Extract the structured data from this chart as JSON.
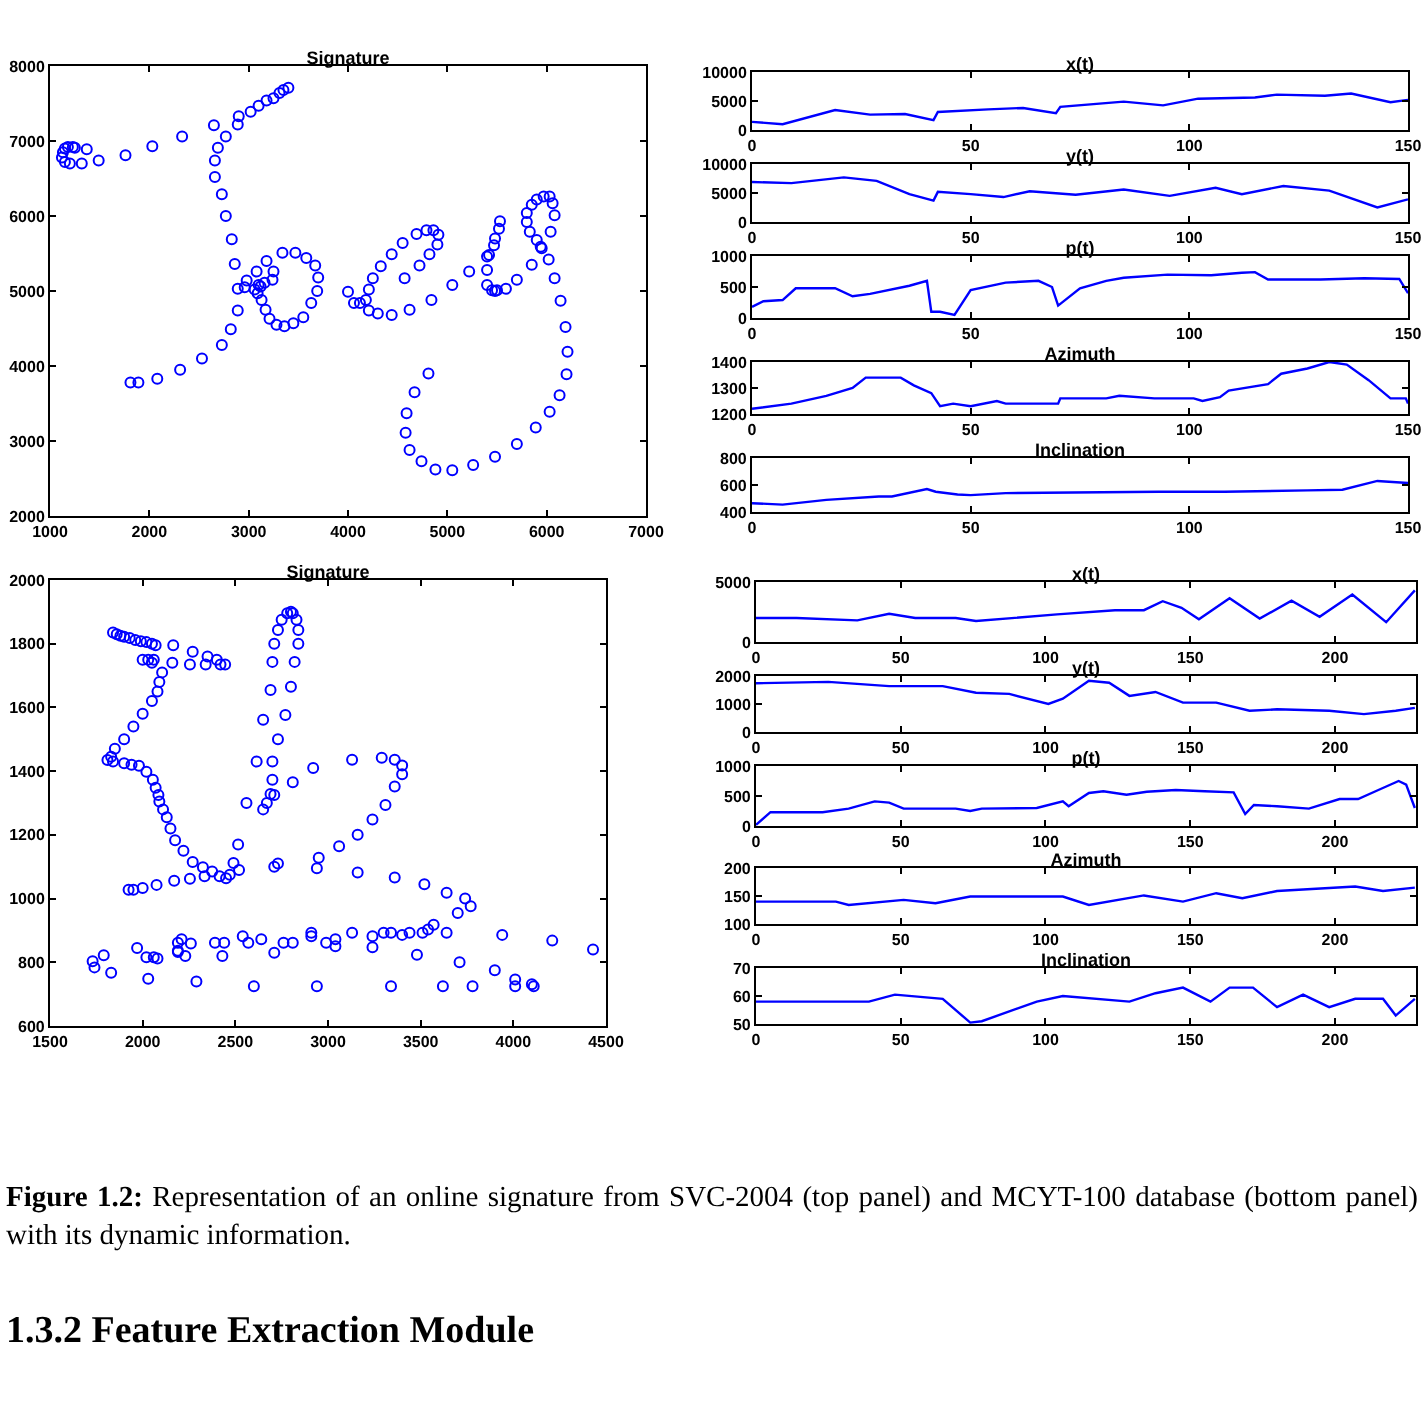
{
  "chart_data": [
    {
      "type": "scatter",
      "title": "Signature",
      "marker": "circle",
      "color": "#0000ff",
      "xlim": [
        1000,
        7000
      ],
      "xticks": [
        1000,
        2000,
        3000,
        4000,
        5000,
        6000,
        7000
      ],
      "ylim": [
        2000,
        8000
      ],
      "yticks": [
        2000,
        3000,
        4000,
        5000,
        6000,
        7000,
        8000
      ],
      "x": [
        1150,
        1130,
        1120,
        1150,
        1200,
        1180,
        1230,
        1250,
        1370,
        1320,
        1490,
        1760,
        2030,
        2330,
        2650,
        2900,
        2890,
        3020,
        3100,
        3180,
        3250,
        3310,
        3350,
        3400,
        2770,
        2690,
        2660,
        2660,
        2730,
        2770,
        2830,
        2860,
        2890,
        2890,
        2820,
        2730,
        2530,
        2310,
        2080,
        1890,
        1810,
        2980,
        2960,
        3080,
        3180,
        3250,
        3240,
        3160,
        3120,
        3090,
        3130,
        3170,
        3210,
        3280,
        3360,
        3450,
        3550,
        3630,
        3690,
        3700,
        3670,
        3580,
        3470,
        3340,
        3060,
        3100,
        4000,
        4060,
        4120,
        4180,
        4210,
        4250,
        4330,
        4440,
        4550,
        4690,
        4790,
        4860,
        4910,
        4900,
        4820,
        4720,
        4570,
        4300,
        4210,
        4440,
        4620,
        4840,
        5050,
        5220,
        5400,
        5400,
        5450,
        5500,
        5590,
        5700,
        5850,
        5940,
        5950,
        5900,
        5830,
        5800,
        5800,
        5850,
        5900,
        5970,
        6030,
        6060,
        6080,
        6040,
        6020,
        6080,
        6140,
        6190,
        6210,
        6200,
        6130,
        6030,
        5890,
        5700,
        5480,
        5260,
        5050,
        4880,
        4740,
        4620,
        4580,
        4590,
        4670,
        4810,
        5400,
        5420,
        5470,
        5480,
        5520,
        5530,
        5480
      ],
      "values": [
        6900,
        6850,
        6780,
        6720,
        6700,
        6920,
        6920,
        6910,
        6890,
        6700,
        6740,
        6810,
        6930,
        7060,
        7210,
        7330,
        7220,
        7390,
        7470,
        7540,
        7570,
        7640,
        7680,
        7710,
        7060,
        6910,
        6740,
        6520,
        6290,
        6000,
        5690,
        5360,
        5030,
        4740,
        4490,
        4280,
        4100,
        3950,
        3830,
        3780,
        3780,
        5140,
        5050,
        5260,
        5400,
        5260,
        5150,
        5110,
        5060,
        4970,
        4880,
        4750,
        4630,
        4550,
        4530,
        4570,
        4650,
        4840,
        5000,
        5180,
        5340,
        5440,
        5510,
        5510,
        5020,
        5080,
        4990,
        4840,
        4840,
        4880,
        5020,
        5170,
        5330,
        5490,
        5640,
        5760,
        5810,
        5810,
        5750,
        5620,
        5490,
        5340,
        5170,
        4700,
        4740,
        4680,
        4750,
        4880,
        5080,
        5260,
        5280,
        5080,
        5010,
        5010,
        5030,
        5150,
        5350,
        5590,
        5570,
        5680,
        5790,
        5920,
        6040,
        6150,
        6220,
        6260,
        6260,
        6170,
        6010,
        5790,
        5420,
        5170,
        4870,
        4520,
        4190,
        3890,
        3610,
        3390,
        3180,
        2960,
        2790,
        2680,
        2610,
        2620,
        2730,
        2880,
        3110,
        3370,
        3650,
        3900,
        5460,
        5480,
        5610,
        5700,
        5830,
        5930,
        5000
      ]
    },
    {
      "type": "line",
      "title": "x(t)",
      "color": "#0000ff",
      "xlim": [
        0,
        150
      ],
      "xticks": [
        0,
        50,
        100,
        150
      ],
      "ylim": [
        0,
        10000
      ],
      "yticks": [
        0,
        5000,
        10000
      ],
      "x": [
        0,
        7,
        19,
        27,
        35,
        41.5,
        42.5,
        54,
        62,
        69.5,
        70.5,
        85,
        94,
        102,
        115,
        120,
        131,
        137,
        146,
        150
      ],
      "values": [
        1400,
        1000,
        3450,
        2650,
        2750,
        1700,
        3100,
        3550,
        3800,
        2900,
        4000,
        4900,
        4250,
        5400,
        5600,
        6100,
        5900,
        6300,
        4800,
        5200
      ]
    },
    {
      "type": "line",
      "title": "y(t)",
      "color": "#0000ff",
      "xlim": [
        0,
        150
      ],
      "xticks": [
        0,
        50,
        100,
        150
      ],
      "ylim": [
        0,
        10000
      ],
      "yticks": [
        0,
        5000,
        10000
      ],
      "x": [
        0,
        9,
        21,
        28.5,
        36,
        41.5,
        42.5,
        50,
        57.5,
        63.5,
        74,
        85,
        95.5,
        106,
        112,
        121.5,
        132,
        143,
        150
      ],
      "values": [
        6900,
        6700,
        7700,
        7100,
        4800,
        3700,
        5200,
        4800,
        4300,
        5300,
        4700,
        5600,
        4500,
        5900,
        4800,
        6200,
        5400,
        2500,
        3900
      ]
    },
    {
      "type": "line",
      "title": "p(t)",
      "color": "#0000ff",
      "xlim": [
        0,
        150
      ],
      "xticks": [
        0,
        50,
        100,
        150
      ],
      "ylim": [
        0,
        1000
      ],
      "yticks": [
        0,
        500,
        1000
      ],
      "x": [
        0,
        2.6,
        7,
        10,
        19,
        23,
        27,
        36,
        40,
        41,
        43,
        46.3,
        50,
        58,
        65.5,
        68.6,
        70,
        75,
        81,
        85,
        95,
        105,
        112,
        115,
        118,
        130,
        140,
        148,
        150
      ],
      "values": [
        180,
        270,
        290,
        480,
        480,
        350,
        390,
        520,
        600,
        100,
        100,
        50,
        450,
        570,
        600,
        500,
        200,
        480,
        600,
        650,
        700,
        690,
        730,
        740,
        620,
        620,
        640,
        630,
        400
      ]
    },
    {
      "type": "line",
      "title": "Azimuth",
      "color": "#0000ff",
      "xlim": [
        0,
        150
      ],
      "xticks": [
        0,
        50,
        100,
        150
      ],
      "ylim": [
        1200,
        1400
      ],
      "yticks": [
        1200,
        1300,
        1400
      ],
      "x": [
        0,
        9,
        17,
        23,
        26,
        34,
        37,
        41,
        43,
        46,
        50,
        56,
        58,
        70,
        70.5,
        81,
        84,
        92,
        101,
        103,
        107,
        109,
        118,
        121,
        127,
        132,
        136,
        141,
        146,
        149.5,
        150
      ],
      "values": [
        1220,
        1240,
        1270,
        1300,
        1340,
        1340,
        1310,
        1280,
        1230,
        1240,
        1230,
        1250,
        1240,
        1240,
        1260,
        1260,
        1270,
        1260,
        1260,
        1250,
        1265,
        1290,
        1315,
        1355,
        1375,
        1400,
        1390,
        1330,
        1260,
        1260,
        1240
      ]
    },
    {
      "type": "line",
      "title": "Inclination",
      "color": "#0000ff",
      "xlim": [
        0,
        150
      ],
      "xticks": [
        0,
        50,
        100,
        150
      ],
      "ylim": [
        400,
        800
      ],
      "yticks": [
        400,
        600,
        800
      ],
      "x": [
        0,
        7,
        17,
        29,
        32,
        40,
        42,
        47,
        50,
        58,
        93,
        108,
        127,
        135,
        143,
        150
      ],
      "values": [
        465,
        455,
        490,
        515,
        515,
        570,
        550,
        530,
        525,
        540,
        550,
        550,
        560,
        565,
        630,
        615
      ]
    },
    {
      "type": "scatter",
      "title": "Signature",
      "marker": "circle",
      "color": "#0000ff",
      "xlim": [
        1500,
        4500
      ],
      "xticks": [
        1500,
        2000,
        2500,
        3000,
        3500,
        4000,
        4500
      ],
      "ylim": [
        600,
        2000
      ],
      "yticks": [
        600,
        800,
        1000,
        1200,
        1400,
        1600,
        1800,
        2000
      ],
      "x": [
        1840,
        1860,
        1880,
        1900,
        1930,
        1960,
        1990,
        2020,
        2050,
        2070,
        2000,
        2030,
        2060,
        2050,
        2165,
        2270,
        2350,
        2400,
        2420,
        2445,
        2340,
        2255,
        2160,
        2105,
        2090,
        2080,
        2050,
        2000,
        1950,
        1900,
        1850,
        1830,
        1810,
        1840,
        1900,
        1940,
        1980,
        2020,
        2055,
        2070,
        2085,
        2090,
        2110,
        2130,
        2150,
        2175,
        2220,
        2270,
        2325,
        2375,
        2415,
        2450,
        2470,
        2490,
        2515,
        2520,
        1924,
        1950,
        2000,
        2075,
        2170,
        2255,
        2334,
        2560,
        2650,
        2670,
        2690,
        2700,
        2700,
        2615,
        2650,
        2730,
        2770,
        2690,
        2800,
        2700,
        2820,
        2710,
        2840,
        2730,
        2840,
        2750,
        2830,
        2780,
        2810,
        2800,
        2710,
        2810,
        2920,
        3130,
        3290,
        3360,
        3400,
        3400,
        3360,
        3310,
        3240,
        3160,
        3060,
        2950,
        2940,
        2710,
        2730,
        3160,
        3360,
        3520,
        3640,
        3740,
        3770,
        3700,
        1730,
        1740,
        1790,
        1830,
        1970,
        2020,
        2060,
        2080,
        2030,
        2190,
        2210,
        2260,
        2190,
        2190,
        2230,
        2290,
        2390,
        2440,
        2430,
        2540,
        2570,
        2640,
        2600,
        2710,
        2760,
        2810,
        2910,
        2910,
        2940,
        2990,
        3040,
        3040,
        3130,
        3240,
        3240,
        3300,
        3340,
        3340,
        3400,
        3440,
        3480,
        3510,
        3540,
        3570,
        3640,
        3620,
        3710,
        3780,
        3900,
        3940,
        4010,
        4010,
        4100,
        4110,
        4210,
        4430
      ],
      "values": [
        1835,
        1830,
        1825,
        1822,
        1818,
        1812,
        1808,
        1805,
        1800,
        1795,
        1750,
        1750,
        1750,
        1740,
        1795,
        1775,
        1760,
        1750,
        1735,
        1735,
        1735,
        1735,
        1740,
        1710,
        1680,
        1650,
        1620,
        1580,
        1540,
        1500,
        1470,
        1445,
        1435,
        1430,
        1425,
        1420,
        1417,
        1398,
        1373,
        1348,
        1325,
        1305,
        1280,
        1255,
        1220,
        1183,
        1150,
        1115,
        1098,
        1085,
        1070,
        1064,
        1075,
        1112,
        1170,
        1090,
        1028,
        1028,
        1033,
        1043,
        1056,
        1062,
        1070,
        1300,
        1280,
        1300,
        1328,
        1373,
        1430,
        1430,
        1561,
        1500,
        1576,
        1655,
        1665,
        1743,
        1743,
        1800,
        1800,
        1843,
        1843,
        1875,
        1875,
        1896,
        1896,
        1900,
        1325,
        1365,
        1410,
        1436,
        1442,
        1436,
        1418,
        1390,
        1352,
        1294,
        1248,
        1200,
        1164,
        1128,
        1095,
        1100,
        1110,
        1082,
        1066,
        1045,
        1018,
        1000,
        976,
        955,
        803,
        784,
        822,
        767,
        845,
        816,
        816,
        812,
        748,
        861,
        872,
        859,
        836,
        832,
        820,
        740,
        861,
        861,
        820,
        882,
        861,
        872,
        725,
        830,
        861,
        861,
        893,
        882,
        725,
        861,
        850,
        872,
        893,
        882,
        847,
        893,
        893,
        725,
        886,
        893,
        824,
        893,
        903,
        918,
        893,
        725,
        800,
        725,
        775,
        886,
        746,
        725,
        731,
        725,
        868,
        840
      ]
    },
    {
      "type": "line",
      "title": "x(t)",
      "color": "#0000ff",
      "xlim": [
        0,
        228
      ],
      "xticks": [
        0,
        50,
        100,
        150,
        200
      ],
      "ylim": [
        0,
        5000
      ],
      "yticks": [
        0,
        5000
      ],
      "x": [
        0,
        14,
        35,
        46,
        55,
        69,
        76,
        104,
        124,
        134,
        140.5,
        147,
        153,
        163.6,
        174,
        185,
        194.7,
        206,
        217.7,
        227.6
      ],
      "values": [
        2000,
        2000,
        1800,
        2350,
        2000,
        2000,
        1750,
        2300,
        2650,
        2650,
        3400,
        2850,
        1900,
        3650,
        1950,
        3450,
        2100,
        3950,
        1650,
        4300
      ]
    },
    {
      "type": "line",
      "title": "y(t)",
      "color": "#0000ff",
      "xlim": [
        0,
        228
      ],
      "xticks": [
        0,
        50,
        100,
        150,
        200
      ],
      "ylim": [
        0,
        2000
      ],
      "yticks": [
        0,
        1000,
        2000
      ],
      "x": [
        0,
        25,
        46,
        64.5,
        76,
        87.5,
        101,
        106,
        115,
        122,
        129,
        138,
        147.5,
        159,
        170.5,
        180,
        198,
        210,
        221,
        227.6
      ],
      "values": [
        1740,
        1790,
        1640,
        1640,
        1400,
        1360,
        1000,
        1190,
        1830,
        1760,
        1290,
        1430,
        1050,
        1050,
        760,
        810,
        760,
        640,
        760,
        860
      ]
    },
    {
      "type": "line",
      "title": "p(t)",
      "color": "#0000ff",
      "xlim": [
        0,
        228
      ],
      "xticks": [
        0,
        50,
        100,
        150,
        200
      ],
      "ylim": [
        0,
        1000
      ],
      "yticks": [
        0,
        500,
        1000
      ],
      "x": [
        0,
        5,
        23,
        32,
        41,
        46,
        51,
        69,
        74,
        78,
        97,
        106,
        108,
        115,
        120,
        128,
        135,
        145,
        155,
        165,
        169,
        172,
        180,
        191,
        201.6,
        208,
        215,
        222,
        224.6,
        227.6
      ],
      "values": [
        20,
        230,
        230,
        290,
        410,
        390,
        290,
        290,
        250,
        290,
        300,
        410,
        330,
        550,
        580,
        520,
        570,
        600,
        580,
        560,
        200,
        350,
        330,
        290,
        450,
        450,
        600,
        750,
        690,
        300
      ]
    },
    {
      "type": "line",
      "title": "Azimuth",
      "color": "#0000ff",
      "xlim": [
        0,
        228
      ],
      "xticks": [
        0,
        50,
        100,
        150,
        200
      ],
      "ylim": [
        100,
        200
      ],
      "yticks": [
        100,
        150,
        200
      ],
      "x": [
        0,
        27.6,
        32,
        51,
        62,
        74,
        106,
        115,
        134,
        147.5,
        159,
        168,
        180,
        207,
        216.6,
        227.6
      ],
      "values": [
        140,
        140,
        134,
        143,
        137,
        149,
        149,
        134,
        151,
        140,
        155,
        146,
        159,
        167,
        159,
        165
      ]
    },
    {
      "type": "line",
      "title": "Inclination",
      "color": "#0000ff",
      "xlim": [
        0,
        228
      ],
      "xticks": [
        0,
        50,
        100,
        150,
        200
      ],
      "ylim": [
        50,
        70
      ],
      "yticks": [
        50,
        60,
        70
      ],
      "x": [
        0,
        39,
        48,
        64.5,
        74,
        78,
        97,
        106,
        129,
        138,
        147.5,
        157,
        163.6,
        171.7,
        180,
        189,
        198,
        207,
        216.6,
        221,
        227.6
      ],
      "values": [
        58,
        58,
        60.5,
        59,
        50.5,
        51,
        58,
        60,
        58,
        61,
        63,
        58,
        63,
        63,
        56,
        60.5,
        56,
        59,
        59,
        53,
        59
      ]
    },
    {
      "type": "other",
      "annotations": [
        "Figure 1.2: Representation of an online signature from SVC-2004 (top panel) and MCYT-100 database (bottom panel) with its dynamic information.",
        "1.3.2 Feature Extraction Module"
      ]
    }
  ]
}
